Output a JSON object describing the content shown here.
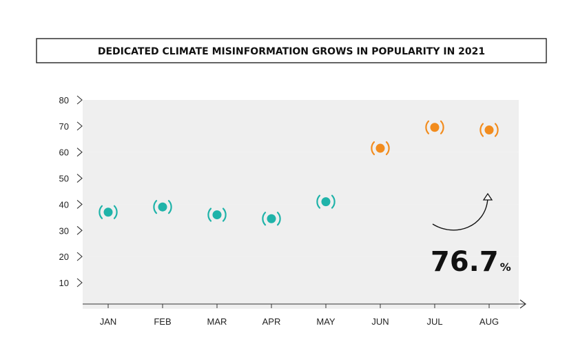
{
  "chart_data": {
    "type": "scatter",
    "title": "DEDICATED CLIMATE MISINFORMATION GROWS IN POPULARITY IN 2021",
    "categories": [
      "JAN",
      "FEB",
      "MAR",
      "APR",
      "MAY",
      "JUN",
      "JUL",
      "AUG"
    ],
    "values": [
      37,
      39,
      36,
      34.5,
      41,
      61.5,
      69.5,
      68.5
    ],
    "yticks": [
      10,
      20,
      30,
      40,
      50,
      60,
      70,
      80
    ],
    "ylim": [
      0,
      80
    ],
    "xlabel": "",
    "ylabel": "",
    "grid": "alternating horizontal bands",
    "colors": {
      "before": "#1fb3a9",
      "after": "#f28c1e",
      "band": "#efefef"
    },
    "annotation": {
      "value": "76.7",
      "unit": "%"
    }
  }
}
